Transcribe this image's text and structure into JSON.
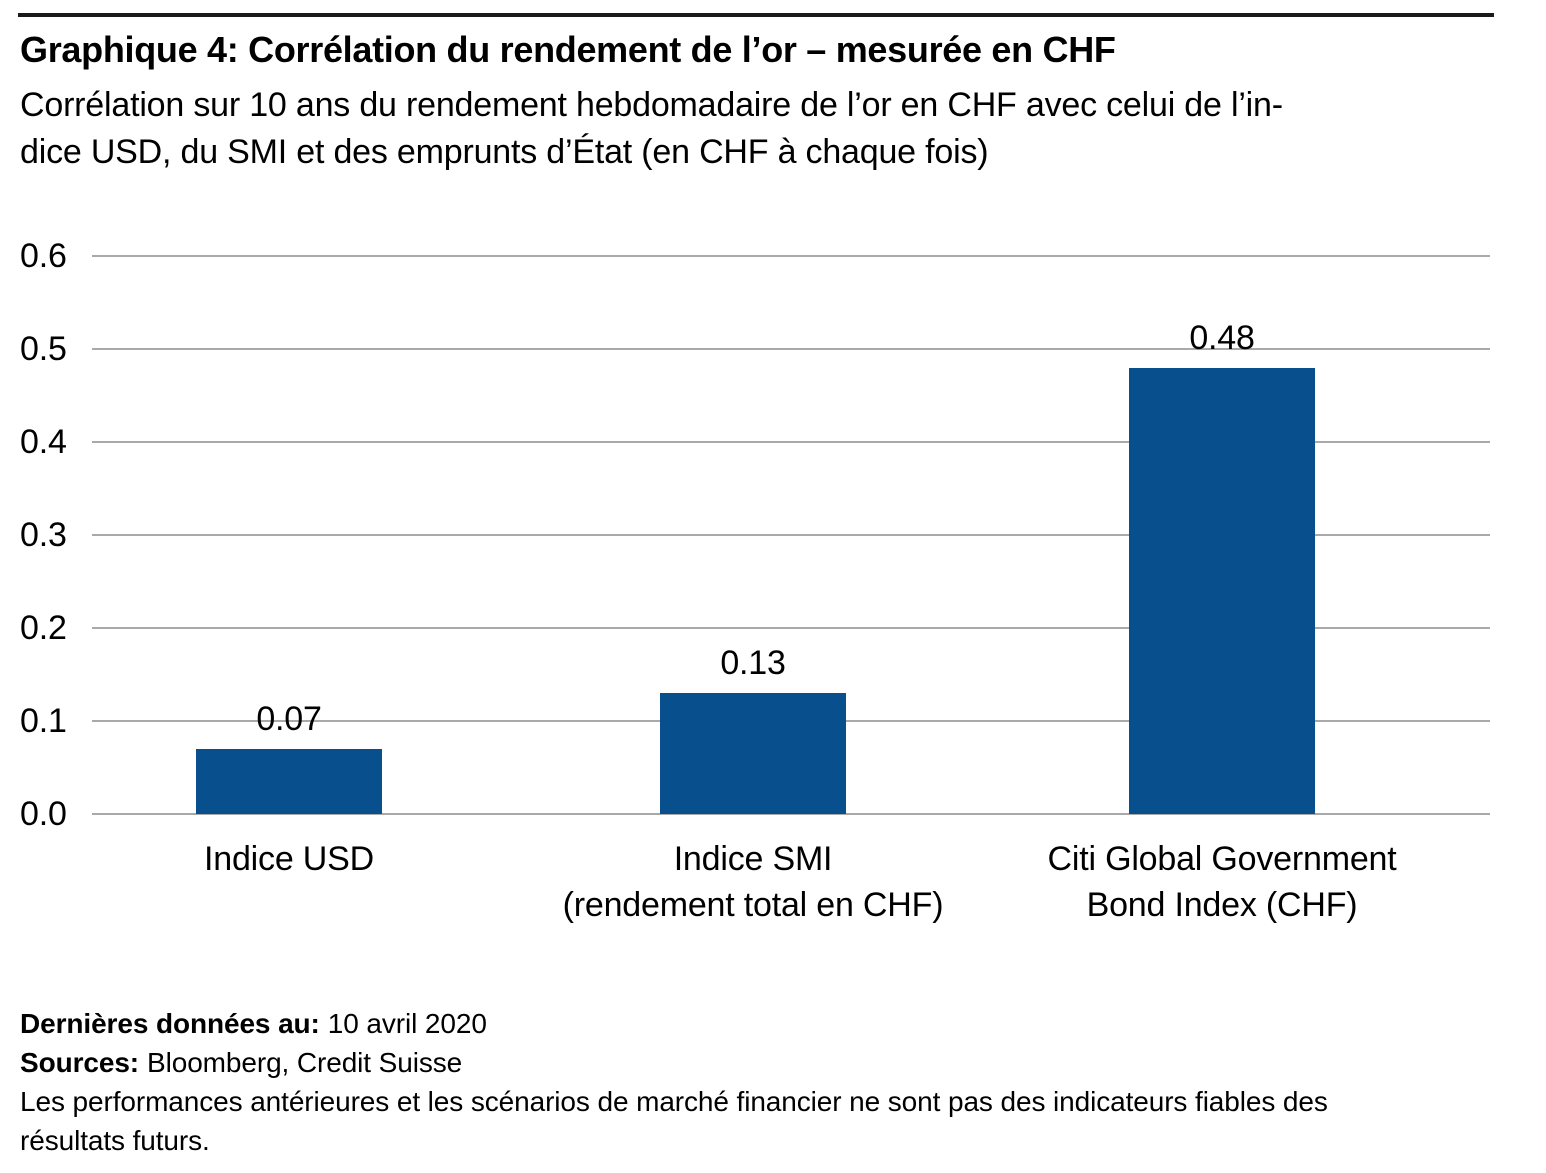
{
  "header": {
    "title": "Graphique 4: Corrélation du rendement de l’or – mesurée en CHF",
    "subtitle_lines": [
      "Corrélation sur 10 ans du rendement hebdomadaire de l’or en CHF avec celui de l’in-",
      "dice USD, du SMI et des emprunts d’État (en CHF à chaque fois)"
    ]
  },
  "chart_data": {
    "type": "bar",
    "title": "Graphique 4: Corrélation du rendement de l’or – mesurée en CHF",
    "xlabel": "",
    "ylabel": "",
    "categories": [
      [
        "Indice USD"
      ],
      [
        "Indice SMI",
        "(rendement total en CHF)"
      ],
      [
        "Citi Global Government",
        "Bond Index (CHF)"
      ]
    ],
    "values": [
      0.07,
      0.13,
      0.48
    ],
    "value_labels": [
      "0.07",
      "0.13",
      "0.48"
    ],
    "y_ticks": [
      "0.6",
      "0.5",
      "0.4",
      "0.3",
      "0.2",
      "0.1",
      "0.0"
    ],
    "ylim": [
      0,
      0.6
    ],
    "grid": "horizontal",
    "legend": "none",
    "bar_color": "#084f8e",
    "grid_color": "#a9a9a9"
  },
  "footer": {
    "last_data_label": "Dernières données au:",
    "last_data_value": "10 avril 2020",
    "sources_label": "Sources:",
    "sources_value": "Bloomberg, Credit Suisse",
    "disclaimer_lines": [
      "Les performances antérieures et les scénarios de marché financier ne sont pas des indicateurs fiables des",
      "résultats futurs."
    ]
  }
}
